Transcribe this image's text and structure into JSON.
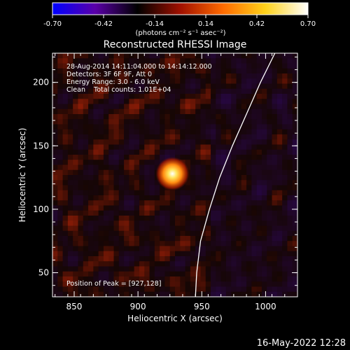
{
  "chart_data": {
    "type": "heatmap",
    "title": "Reconstructed RHESSI Image",
    "xlabel": "Heliocentric X (arcsec)",
    "ylabel": "Heliocentric Y (arcsec)",
    "xlim": [
      833,
      1025
    ],
    "ylim": [
      31,
      223
    ],
    "xticks": [
      850,
      900,
      950,
      1000
    ],
    "yticks": [
      50,
      100,
      150,
      200
    ],
    "colorbar": {
      "range": [
        -0.7,
        0.7
      ],
      "ticks": [
        "-0.70",
        "-0.42",
        "-0.14",
        "0.14",
        "0.42",
        "0.70"
      ],
      "unit": "(photons cm⁻² s⁻¹ asec⁻²)",
      "colormap": [
        "#0000ff",
        "#5a00a8",
        "#000000",
        "#a01000",
        "#ff6a00",
        "#ffd21a",
        "#ffffff"
      ]
    },
    "annotations": [
      "28-Aug-2014 14:11:04.000 to 14:14:12.000",
      "Detectors: 3F 6F 9F, Att 0",
      "Energy Range: 3.0 - 6.0 keV",
      "Clean    Total counts: 1.01E+04"
    ],
    "peak": {
      "x": 927,
      "y": 128
    },
    "peak_label": "Position of Peak = [927,128]",
    "limb": [
      [
        1007.3,
        223
      ],
      [
        996,
        200
      ],
      [
        985,
        175
      ],
      [
        974,
        150
      ],
      [
        964,
        125
      ],
      [
        956,
        100
      ],
      [
        949,
        75
      ],
      [
        946,
        50
      ],
      [
        945,
        31
      ]
    ],
    "timestamp": "16-May-2022 12:28"
  }
}
